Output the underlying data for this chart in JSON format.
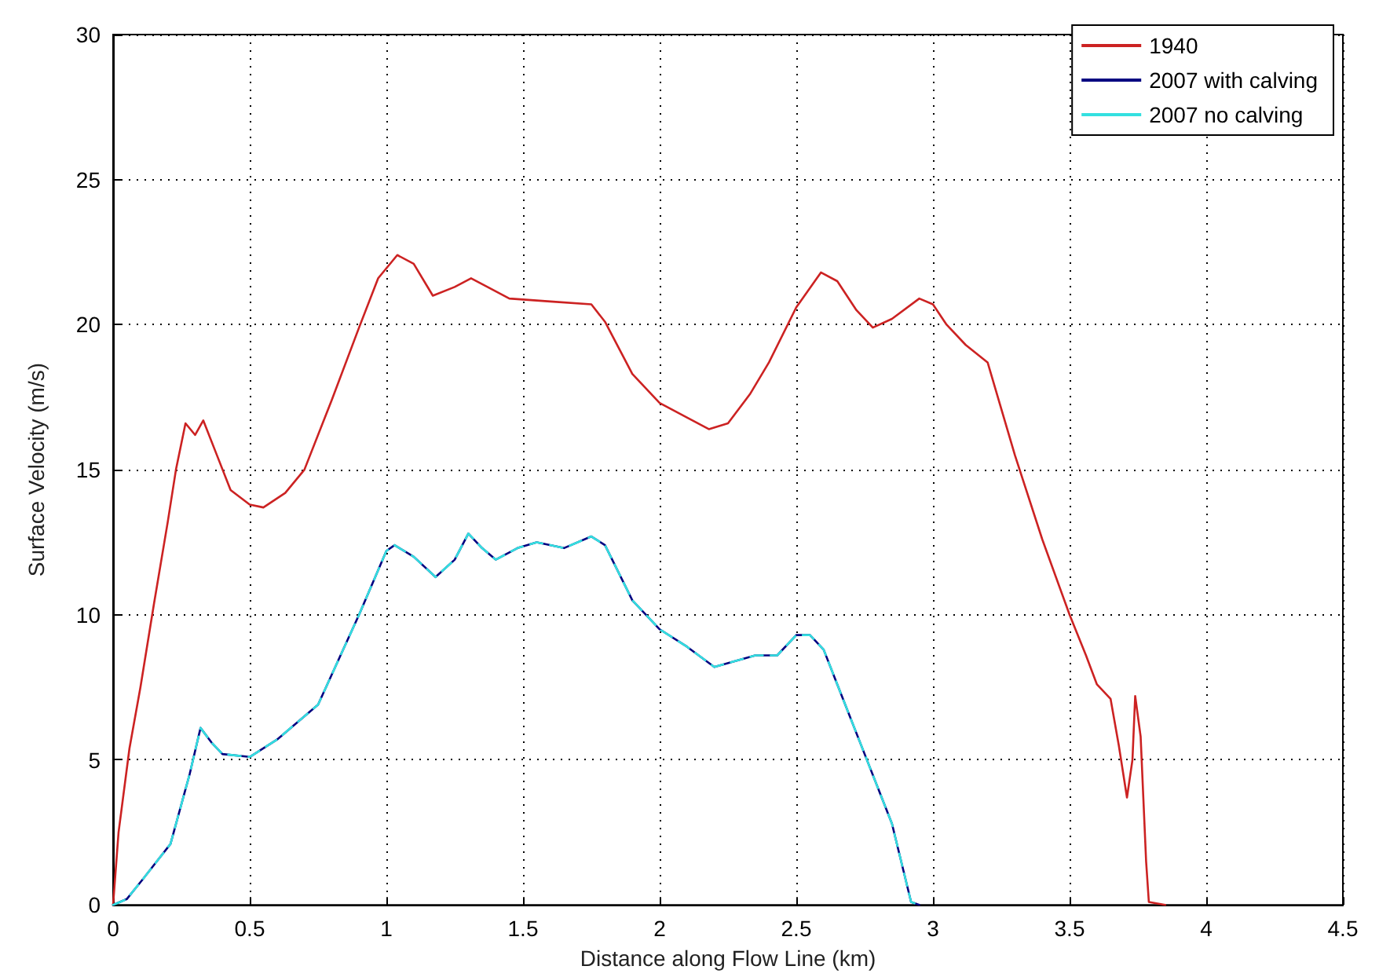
{
  "chart_data": {
    "type": "line",
    "xlabel": "Distance along Flow Line (km)",
    "ylabel": "Surface Velocity (m/s)",
    "xlim": [
      0,
      4.5
    ],
    "xticks": [
      0,
      0.5,
      1,
      1.5,
      2,
      2.5,
      3,
      3.5,
      4,
      4.5
    ],
    "ylim": [
      0,
      30
    ],
    "yticks": [
      0,
      5,
      10,
      15,
      20,
      25,
      30
    ],
    "grid": true,
    "legend": "top right",
    "marker": "none",
    "series": [
      {
        "name": "1940",
        "color": "#cc2222",
        "line_style": "solid",
        "x": [
          0,
          0.02,
          0.06,
          0.1,
          0.15,
          0.2,
          0.23,
          0.265,
          0.3,
          0.33,
          0.38,
          0.43,
          0.5,
          0.55,
          0.63,
          0.7,
          0.8,
          0.9,
          0.97,
          1.04,
          1.1,
          1.17,
          1.25,
          1.31,
          1.37,
          1.45,
          1.6,
          1.75,
          1.8,
          1.9,
          2.0,
          2.1,
          2.18,
          2.25,
          2.33,
          2.4,
          2.5,
          2.59,
          2.65,
          2.72,
          2.78,
          2.85,
          2.95,
          3.0,
          3.05,
          3.12,
          3.2,
          3.3,
          3.4,
          3.5,
          3.56,
          3.6,
          3.65,
          3.68,
          3.71,
          3.73,
          3.74,
          3.76,
          3.78,
          3.79,
          3.85
        ],
        "values": [
          0,
          2.5,
          5.4,
          7.5,
          10.4,
          13.2,
          15.0,
          16.6,
          16.2,
          16.7,
          15.5,
          14.3,
          13.8,
          13.7,
          14.2,
          15.0,
          17.4,
          19.9,
          21.6,
          22.4,
          22.1,
          21.0,
          21.3,
          21.6,
          21.3,
          20.9,
          20.8,
          20.7,
          20.1,
          18.3,
          17.3,
          16.8,
          16.4,
          16.6,
          17.6,
          18.7,
          20.6,
          21.8,
          21.5,
          20.5,
          19.9,
          20.2,
          20.9,
          20.7,
          20.0,
          19.3,
          18.7,
          15.5,
          12.6,
          10.0,
          8.6,
          7.6,
          7.1,
          5.5,
          3.7,
          5.0,
          7.2,
          5.8,
          1.5,
          0.1,
          0
        ]
      },
      {
        "name": "2007 with calving",
        "color": "#000080",
        "line_style": "solid",
        "x": [
          0,
          0.05,
          0.11,
          0.16,
          0.21,
          0.28,
          0.32,
          0.36,
          0.4,
          0.5,
          0.6,
          0.75,
          0.9,
          1.0,
          1.03,
          1.1,
          1.18,
          1.25,
          1.3,
          1.35,
          1.4,
          1.48,
          1.55,
          1.65,
          1.75,
          1.8,
          1.9,
          2.0,
          2.1,
          2.2,
          2.35,
          2.43,
          2.5,
          2.55,
          2.6,
          2.65,
          2.75,
          2.85,
          2.92,
          2.95
        ],
        "values": [
          0,
          0.2,
          0.9,
          1.5,
          2.1,
          4.5,
          6.1,
          5.6,
          5.2,
          5.1,
          5.7,
          6.9,
          10.0,
          12.2,
          12.4,
          12.0,
          11.3,
          11.9,
          12.8,
          12.3,
          11.9,
          12.3,
          12.5,
          12.3,
          12.7,
          12.4,
          10.5,
          9.5,
          8.9,
          8.2,
          8.6,
          8.6,
          9.3,
          9.3,
          8.8,
          7.6,
          5.2,
          2.8,
          0.1,
          0
        ]
      },
      {
        "name": "2007 no calving",
        "color": "#33e0e0",
        "line_style": "dashed",
        "x": [
          0,
          0.05,
          0.11,
          0.16,
          0.21,
          0.28,
          0.32,
          0.36,
          0.4,
          0.5,
          0.6,
          0.75,
          0.9,
          1.0,
          1.03,
          1.1,
          1.18,
          1.25,
          1.3,
          1.35,
          1.4,
          1.48,
          1.55,
          1.65,
          1.75,
          1.8,
          1.9,
          2.0,
          2.1,
          2.2,
          2.35,
          2.43,
          2.5,
          2.55,
          2.6,
          2.65,
          2.75,
          2.85,
          2.92,
          2.95
        ],
        "values": [
          0,
          0.2,
          0.9,
          1.5,
          2.1,
          4.5,
          6.1,
          5.6,
          5.2,
          5.1,
          5.7,
          6.9,
          10.0,
          12.2,
          12.4,
          12.0,
          11.3,
          11.9,
          12.8,
          12.3,
          11.9,
          12.3,
          12.5,
          12.3,
          12.7,
          12.4,
          10.5,
          9.5,
          8.9,
          8.2,
          8.6,
          8.6,
          9.3,
          9.3,
          8.8,
          7.6,
          5.2,
          2.8,
          0.1,
          0
        ]
      }
    ]
  }
}
